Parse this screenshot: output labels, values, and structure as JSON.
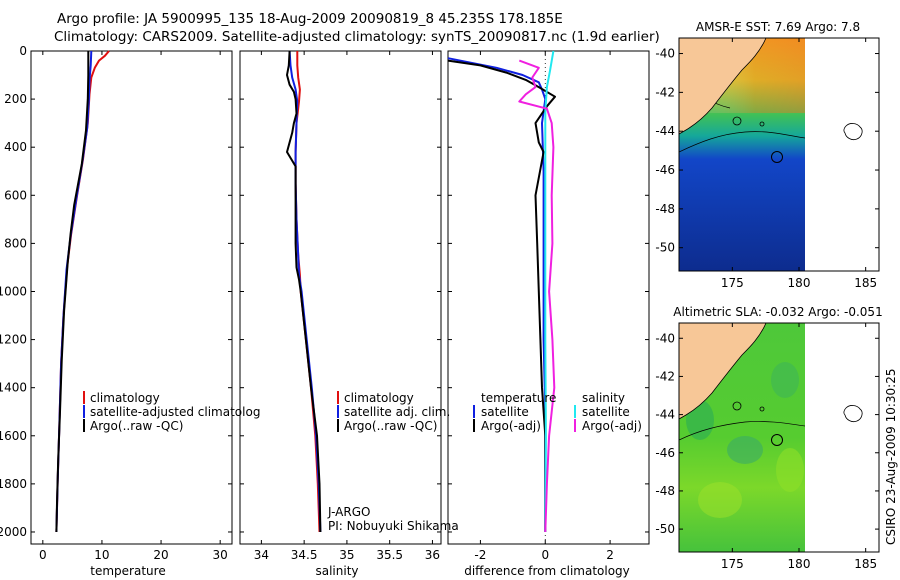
{
  "header": {
    "line1": "Argo profile: JA 5900995_135 18-Aug-2009 20090819_8 45.235S 178.185E",
    "line2": "Climatology: CARS2009. Satellite-adjusted climatology: synTS_20090817.nc (1.9d earlier)"
  },
  "side_label": "CSIRO 23-Aug-2009 10:30:25",
  "colors": {
    "climatology": "#e01010",
    "satellite": "#1020e0",
    "argo": "#000000",
    "sat_sal": "#20e8f0",
    "argo_sal": "#f020e0"
  },
  "chart_data": [
    {
      "id": "temperature",
      "type": "line",
      "xlabel": "temperature",
      "xlim": [
        -2,
        32
      ],
      "xticks": [
        0,
        10,
        20,
        30
      ],
      "ylim": [
        0,
        2050
      ],
      "yticks": [
        0,
        200,
        400,
        600,
        800,
        1000,
        1200,
        1400,
        1600,
        1800,
        2000
      ],
      "y_reversed": true,
      "legend": [
        "climatology",
        "satellite-adjusted climatolog",
        "Argo(..raw -QC)"
      ],
      "series": [
        {
          "name": "climatology",
          "color": "#e01010",
          "points": [
            [
              11.2,
              0
            ],
            [
              10.5,
              20
            ],
            [
              9.5,
              40
            ],
            [
              8.8,
              70
            ],
            [
              8.2,
              110
            ],
            [
              7.9,
              180
            ],
            [
              7.6,
              300
            ],
            [
              6.8,
              450
            ],
            [
              5.8,
              600
            ],
            [
              4.8,
              760
            ],
            [
              4.1,
              900
            ],
            [
              3.5,
              1100
            ],
            [
              3.1,
              1300
            ],
            [
              2.8,
              1550
            ],
            [
              2.5,
              1800
            ],
            [
              2.3,
              2000
            ]
          ]
        },
        {
          "name": "satellite-adjusted climatolog",
          "color": "#1020e0",
          "points": [
            [
              8.2,
              0
            ],
            [
              8.1,
              60
            ],
            [
              7.9,
              120
            ],
            [
              7.8,
              200
            ],
            [
              7.5,
              320
            ],
            [
              6.7,
              460
            ],
            [
              5.7,
              610
            ],
            [
              4.7,
              770
            ],
            [
              4.0,
              910
            ],
            [
              3.5,
              1100
            ],
            [
              3.1,
              1300
            ],
            [
              2.8,
              1550
            ],
            [
              2.5,
              1800
            ],
            [
              2.3,
              2000
            ]
          ]
        },
        {
          "name": "Argo(..raw -QC)",
          "color": "#000000",
          "points": [
            [
              7.7,
              0
            ],
            [
              7.7,
              100
            ],
            [
              7.6,
              200
            ],
            [
              7.3,
              330
            ],
            [
              6.6,
              470
            ],
            [
              5.3,
              640
            ],
            [
              4.7,
              760
            ],
            [
              4.2,
              880
            ],
            [
              3.6,
              1080
            ],
            [
              3.2,
              1290
            ],
            [
              2.9,
              1500
            ],
            [
              2.6,
              1700
            ],
            [
              2.4,
              1880
            ],
            [
              2.3,
              2000
            ]
          ]
        }
      ]
    },
    {
      "id": "salinity",
      "type": "line",
      "xlabel": "salinity",
      "xlim": [
        33.75,
        36.1
      ],
      "xticks": [
        34,
        34.5,
        35,
        35.5,
        36
      ],
      "xticklabels": [
        "34",
        "34.5",
        "35",
        "35.5",
        "36"
      ],
      "ylim": [
        0,
        2050
      ],
      "y_reversed": true,
      "legend": [
        "climatology",
        "satellite adj. clim.",
        "Argo(..raw -QC)"
      ],
      "annotation": [
        "J-ARGO",
        "PI: Nobuyuki Shikama"
      ],
      "series": [
        {
          "name": "climatology",
          "color": "#e01010",
          "points": [
            [
              34.42,
              0
            ],
            [
              34.42,
              60
            ],
            [
              34.43,
              110
            ],
            [
              34.45,
              160
            ],
            [
              34.44,
              210
            ],
            [
              34.41,
              300
            ],
            [
              34.4,
              420
            ],
            [
              34.4,
              550
            ],
            [
              34.41,
              700
            ],
            [
              34.43,
              850
            ],
            [
              34.45,
              930
            ],
            [
              34.46,
              1000
            ],
            [
              34.52,
              1200
            ],
            [
              34.58,
              1400
            ],
            [
              34.63,
              1600
            ],
            [
              34.66,
              1800
            ],
            [
              34.68,
              2000
            ]
          ]
        },
        {
          "name": "satellite adj. clim.",
          "color": "#1020e0",
          "points": [
            [
              34.33,
              0
            ],
            [
              34.34,
              60
            ],
            [
              34.36,
              110
            ],
            [
              34.4,
              160
            ],
            [
              34.42,
              210
            ],
            [
              34.41,
              300
            ],
            [
              34.4,
              420
            ],
            [
              34.4,
              550
            ],
            [
              34.41,
              700
            ],
            [
              34.43,
              850
            ],
            [
              34.44,
              930
            ],
            [
              34.47,
              1000
            ],
            [
              34.53,
              1200
            ],
            [
              34.59,
              1400
            ],
            [
              34.64,
              1600
            ],
            [
              34.67,
              1800
            ],
            [
              34.69,
              2000
            ]
          ]
        },
        {
          "name": "Argo(..raw -QC)",
          "color": "#000000",
          "points": [
            [
              34.33,
              0
            ],
            [
              34.32,
              60
            ],
            [
              34.3,
              100
            ],
            [
              34.33,
              140
            ],
            [
              34.38,
              170
            ],
            [
              34.4,
              200
            ],
            [
              34.41,
              260
            ],
            [
              34.38,
              300
            ],
            [
              34.36,
              340
            ],
            [
              34.33,
              380
            ],
            [
              34.3,
              420
            ],
            [
              34.4,
              480
            ],
            [
              34.4,
              600
            ],
            [
              34.4,
              800
            ],
            [
              34.41,
              900
            ],
            [
              34.44,
              950
            ],
            [
              34.46,
              1000
            ],
            [
              34.49,
              1100
            ],
            [
              34.52,
              1200
            ],
            [
              34.58,
              1400
            ],
            [
              34.65,
              1600
            ],
            [
              34.68,
              1800
            ],
            [
              34.69,
              2000
            ]
          ]
        }
      ]
    },
    {
      "id": "difference",
      "type": "line",
      "xlabel": "difference from climatology",
      "xlim": [
        -3,
        3.2
      ],
      "xticks": [
        -2,
        0,
        2
      ],
      "ylim": [
        0,
        2050
      ],
      "y_reversed": true,
      "legend_left": [
        "temperature",
        "satellite",
        "Argo(-adj)"
      ],
      "legend_right": [
        "salinity",
        "satellite",
        "Argo(-adj)"
      ],
      "series": [
        {
          "name": "temperature satellite",
          "color": "#1020e0",
          "points": [
            [
              -3.0,
              30
            ],
            [
              -1.5,
              70
            ],
            [
              -0.7,
              100
            ],
            [
              -0.2,
              130
            ],
            [
              -0.1,
              160
            ],
            [
              0.0,
              200
            ],
            [
              -0.1,
              300
            ],
            [
              -0.05,
              500
            ],
            [
              -0.05,
              800
            ],
            [
              -0.05,
              1200
            ],
            [
              0.0,
              1500
            ],
            [
              0.0,
              1800
            ],
            [
              0.0,
              2000
            ]
          ]
        },
        {
          "name": "temperature Argo(-adj)",
          "color": "#000000",
          "points": [
            [
              -3.0,
              40
            ],
            [
              -2.0,
              60
            ],
            [
              -1.2,
              90
            ],
            [
              -0.6,
              120
            ],
            [
              -0.2,
              150
            ],
            [
              0.3,
              190
            ],
            [
              0.05,
              230
            ],
            [
              -0.3,
              300
            ],
            [
              -0.2,
              380
            ],
            [
              -0.05,
              420
            ],
            [
              -0.3,
              600
            ],
            [
              -0.25,
              800
            ],
            [
              -0.2,
              1000
            ],
            [
              -0.15,
              1200
            ],
            [
              -0.1,
              1400
            ],
            [
              0.0,
              1600
            ],
            [
              0.0,
              1800
            ],
            [
              0.0,
              2000
            ]
          ]
        },
        {
          "name": "salinity satellite",
          "color": "#20e8f0",
          "points": [
            [
              0.25,
              0
            ],
            [
              0.15,
              80
            ],
            [
              0.05,
              150
            ],
            [
              0.0,
              250
            ],
            [
              0.0,
              500
            ],
            [
              0.0,
              800
            ],
            [
              0.0,
              1200
            ],
            [
              0.02,
              1600
            ],
            [
              0.0,
              2000
            ]
          ]
        },
        {
          "name": "salinity Argo(-adj)",
          "color": "#f020e0",
          "points": [
            [
              -0.8,
              40
            ],
            [
              -0.2,
              70
            ],
            [
              -0.4,
              110
            ],
            [
              -0.3,
              150
            ],
            [
              -0.6,
              180
            ],
            [
              -0.8,
              210
            ],
            [
              0.05,
              240
            ],
            [
              0.2,
              300
            ],
            [
              0.25,
              400
            ],
            [
              0.2,
              600
            ],
            [
              0.22,
              800
            ],
            [
              0.12,
              1000
            ],
            [
              0.22,
              1200
            ],
            [
              0.28,
              1400
            ],
            [
              0.12,
              1600
            ],
            [
              0.05,
              1800
            ],
            [
              0.0,
              2000
            ]
          ]
        }
      ]
    },
    {
      "id": "sst_map",
      "type": "heatmap",
      "title": "AMSR-E SST: 7.69  Argo: 7.8",
      "xlim": [
        171,
        186
      ],
      "ylim": [
        -51.2,
        -39.2
      ],
      "xticks": [
        175,
        180,
        185
      ],
      "yticks": [
        -40,
        -42,
        -44,
        -46,
        -48,
        -50
      ]
    },
    {
      "id": "sla_map",
      "type": "heatmap",
      "title": "Altimetric SLA: -0.032  Argo: -0.051",
      "xlim": [
        171,
        186
      ],
      "ylim": [
        -51.2,
        -39.2
      ],
      "xticks": [
        175,
        180,
        185
      ],
      "yticks": [
        -40,
        -42,
        -44,
        -46,
        -48,
        -50
      ]
    }
  ]
}
